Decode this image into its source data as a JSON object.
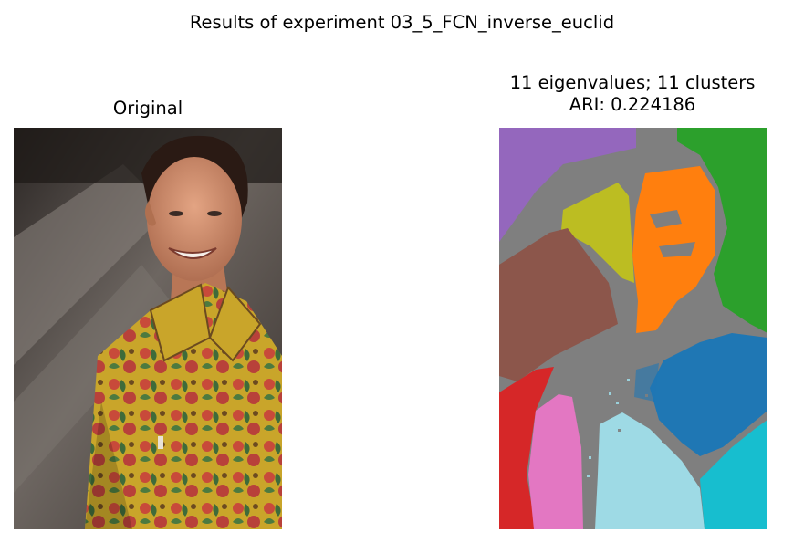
{
  "figure": {
    "suptitle": "Results of experiment 03_5_FCN_inverse_euclid"
  },
  "left_panel": {
    "title": "Original",
    "image_description_icon": "portrait-photo"
  },
  "right_panel": {
    "title_line1": "11 eigenvalues; 11 clusters",
    "title_line2": "ARI: 0.224186",
    "cluster_colors": {
      "purple": "#9467bd",
      "olive": "#bcbd22",
      "orange": "#ff7f0e",
      "green": "#2ca02c",
      "brown": "#8c564b",
      "gray": "#7f7f7f",
      "blue": "#1f77b4",
      "red": "#d62728",
      "pink": "#e377c2",
      "lightcyan": "#9edae5",
      "cyan": "#17becf"
    }
  }
}
